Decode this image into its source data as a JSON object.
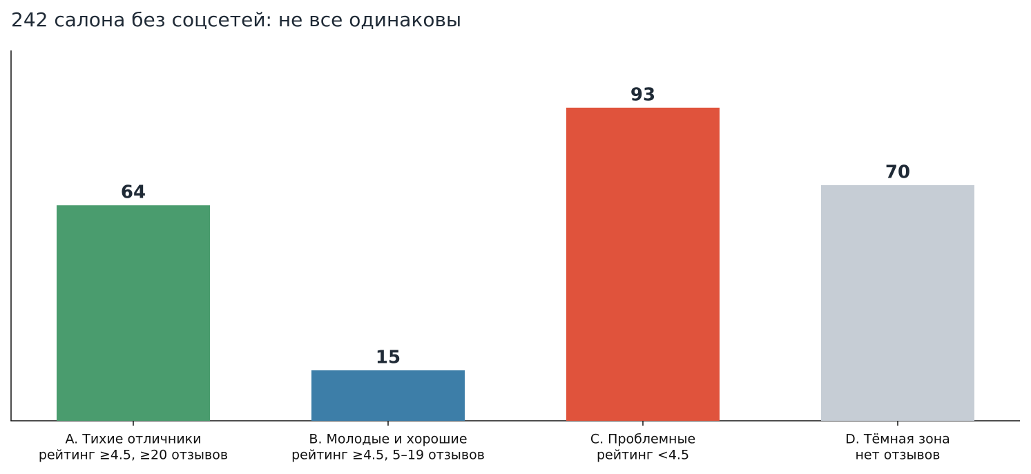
{
  "chart_data": {
    "type": "bar",
    "title": "242 салона без соцсетей: не все одинаковы",
    "categories": [
      [
        "A. Тихие отличники",
        "рейтинг ≥4.5, ≥20 отзывов"
      ],
      [
        "B. Молодые и хорошие",
        "рейтинг ≥4.5, 5–19 отзывов"
      ],
      [
        "C. Проблемные",
        "рейтинг <4.5"
      ],
      [
        "D. Тёмная зона",
        "нет отзывов"
      ]
    ],
    "values": [
      64,
      15,
      93,
      70
    ],
    "colors": [
      "#4a9c6e",
      "#3d7ea8",
      "#e0533c",
      "#c6cdd5"
    ],
    "ylim": [
      0,
      110
    ]
  }
}
